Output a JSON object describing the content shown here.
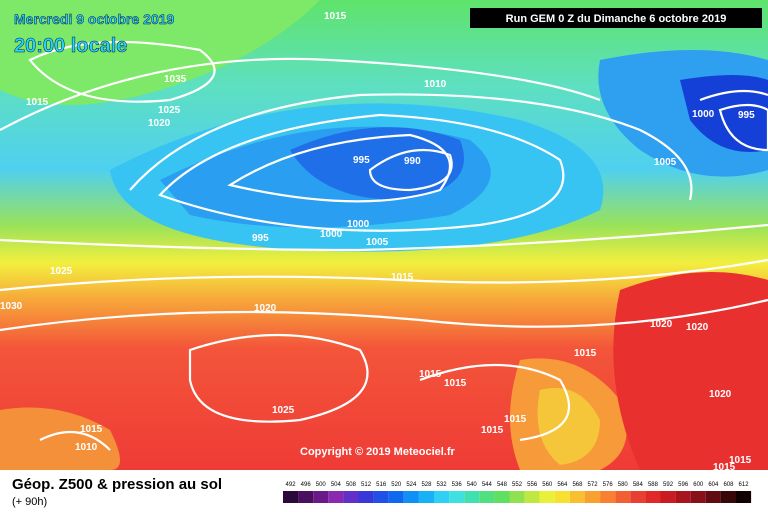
{
  "header": {
    "date": "Mercredi 9 octobre 2019",
    "time": "20:00 locale",
    "run": "Run GEM 0 Z du Dimanche 6 octobre 2019"
  },
  "isobar_labels": [
    "1015",
    "1035",
    "1015",
    "1025",
    "1020",
    "1010",
    "1000",
    "995",
    "995",
    "990",
    "1005",
    "1000",
    "995",
    "1000",
    "1005",
    "1025",
    "1015",
    "1020",
    "1030",
    "1020",
    "1020",
    "1015",
    "1015",
    "1015",
    "1025",
    "1020",
    "1015",
    "1015",
    "1015",
    "1010",
    "1015",
    "1015"
  ],
  "copyright": "Copyright © 2019 Meteociel.fr",
  "footer": {
    "title": "Géop. Z500 & pression au sol",
    "lead": "(+ 90h)",
    "scale": [
      492,
      496,
      500,
      504,
      508,
      512,
      516,
      520,
      524,
      528,
      532,
      536,
      540,
      544,
      548,
      552,
      556,
      560,
      564,
      568,
      572,
      576,
      580,
      584,
      588,
      592,
      596,
      600,
      604,
      608,
      612
    ]
  }
}
